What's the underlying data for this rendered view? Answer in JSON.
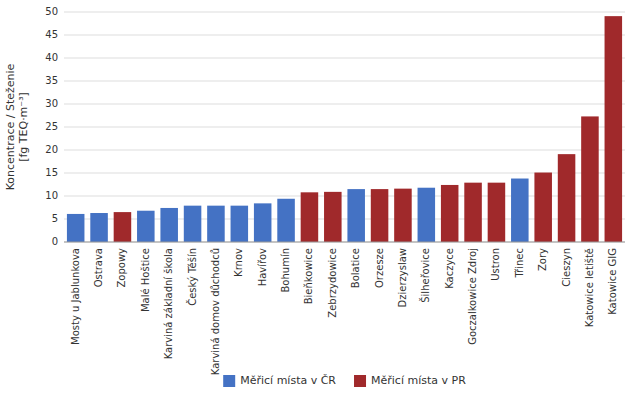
{
  "chart_data": {
    "type": "bar",
    "categories": [
      "Mosty u Jablunkova",
      "Ostrava",
      "Zopowy",
      "Malé Hoštice",
      "Karviná základní škola",
      "Český Těšín",
      "Karviná domov důchodců",
      "Krnov",
      "Havířov",
      "Bohumín",
      "Bieňkowice",
      "Zebrzydowice",
      "Bolatice",
      "Orzesze",
      "Dzierzyslaw",
      "Šilheřovice",
      "Kaczyce",
      "Goczalkowice Zdroj",
      "Ustron",
      "Třinec",
      "Zory",
      "Cieszyn",
      "Katowice letiště",
      "Katowice GIG"
    ],
    "values": [
      6.1,
      6.3,
      6.5,
      6.8,
      7.4,
      7.9,
      7.9,
      7.9,
      8.4,
      9.4,
      10.8,
      10.9,
      11.5,
      11.5,
      11.6,
      11.8,
      12.4,
      12.9,
      12.9,
      13.8,
      15.1,
      19.1,
      27.3,
      49.1
    ],
    "colors": [
      "#4472C4",
      "#4472C4",
      "#A0292B",
      "#4472C4",
      "#4472C4",
      "#4472C4",
      "#4472C4",
      "#4472C4",
      "#4472C4",
      "#4472C4",
      "#A0292B",
      "#A0292B",
      "#4472C4",
      "#A0292B",
      "#A0292B",
      "#4472C4",
      "#A0292B",
      "#A0292B",
      "#A0292B",
      "#4472C4",
      "#A0292B",
      "#A0292B",
      "#A0292B",
      "#A0292B"
    ],
    "ylabel": "Koncentrace / Steženie\n[fg TEQ·m⁻³]",
    "ylim": [
      0,
      50
    ],
    "yticks": [
      0,
      5,
      10,
      15,
      20,
      25,
      30,
      35,
      40,
      45,
      50
    ],
    "grid": true,
    "legend": "bottom",
    "legend_entries": [
      {
        "name": "Měřicí místa v ČR",
        "color": "#4472C4"
      },
      {
        "name": "Měřicí místa v PR",
        "color": "#A0292B"
      }
    ]
  }
}
